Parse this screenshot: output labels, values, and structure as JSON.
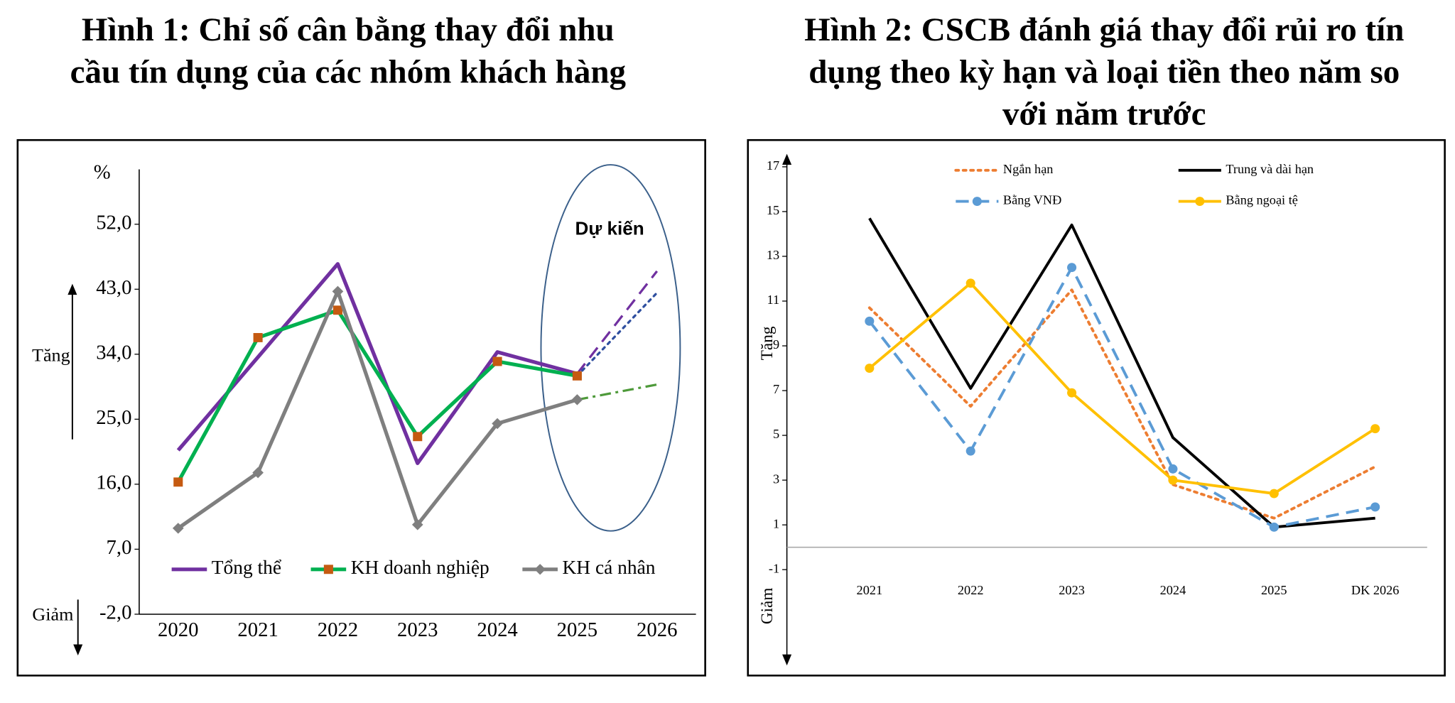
{
  "chart_data": [
    {
      "type": "line",
      "title": [
        "Hình 1:  Chỉ số cân bằng thay đổi nhu",
        "cầu tín dụng của các nhóm khách hàng"
      ],
      "annotations": {
        "unit": "%",
        "up": "Tăng",
        "down": "Giảm",
        "forecast": "Dự kiến"
      },
      "categories": [
        "2020",
        "2021",
        "2022",
        "2023",
        "2024",
        "2025",
        "2026"
      ],
      "projection_start": 5,
      "series": [
        {
          "name": "Tổng thể",
          "color": "#7030a0",
          "marker": "none",
          "dash": "solid",
          "projection_color": "#7030a0",
          "projection_dash": "dashed",
          "values": [
            20.7,
            33.6,
            46.5,
            18.9,
            34.3,
            31.3,
            45.5
          ]
        },
        {
          "name": "KH  doanh nghiệp",
          "color": "#00b050",
          "marker": "square",
          "marker_color": "#c55a11",
          "dash": "solid",
          "projection_color": "#2f4f9f",
          "projection_dash": "dotted",
          "values": [
            16.3,
            36.3,
            40.1,
            22.6,
            33.0,
            31.0,
            42.5
          ]
        },
        {
          "name": "KH cá nhân",
          "color": "#7f7f7f",
          "marker": "diamond",
          "dash": "solid",
          "projection_color": "#4e9a3a",
          "projection_dash": "dashdot",
          "values": [
            9.9,
            17.6,
            42.7,
            10.4,
            24.4,
            27.7,
            29.8
          ]
        }
      ],
      "ylim": [
        -2,
        59.6
      ],
      "yticks": [
        {
          "value": -2,
          "label": "-2,0"
        },
        {
          "value": 7,
          "label": "7,0"
        },
        {
          "value": 16,
          "label": "16,0"
        },
        {
          "value": 25,
          "label": "25,0"
        },
        {
          "value": 34,
          "label": "34,0"
        },
        {
          "value": 43,
          "label": "43,0"
        },
        {
          "value": 52,
          "label": "52,0"
        }
      ],
      "legend": "bottom"
    },
    {
      "type": "line",
      "title": [
        "Hình 2: CSCB đánh giá thay đổi rủi ro tín",
        "dụng theo kỳ hạn và loại tiền theo năm so",
        "với năm trước"
      ],
      "annotations": {
        "up": "Tăng",
        "down": "Giảm"
      },
      "categories": [
        "2021",
        "2022",
        "2023",
        "2024",
        "2025",
        "DK 2026"
      ],
      "series": [
        {
          "name": "Ngắn hạn",
          "color": "#ed7d31",
          "marker": "none",
          "dash": "dotted",
          "values": [
            10.7,
            6.3,
            11.5,
            2.8,
            1.3,
            3.6
          ]
        },
        {
          "name": "Trung và dài hạn",
          "color": "#000000",
          "marker": "none",
          "dash": "solid",
          "values": [
            14.7,
            7.1,
            14.4,
            4.9,
            0.9,
            1.3
          ]
        },
        {
          "name": "Bằng VNĐ",
          "color": "#5b9bd5",
          "marker": "circle",
          "dash": "dashed",
          "values": [
            10.1,
            4.3,
            12.5,
            3.5,
            0.9,
            1.8
          ]
        },
        {
          "name": "Bằng ngoại tệ",
          "color": "#ffc000",
          "marker": "circle",
          "dash": "solid",
          "values": [
            8.0,
            11.8,
            6.9,
            3.0,
            2.4,
            5.3
          ]
        }
      ],
      "ylim": [
        -5.2,
        17.5
      ],
      "yticks": [
        -1,
        1,
        3,
        5,
        7,
        9,
        11,
        13,
        15,
        17
      ],
      "legend": "top"
    }
  ]
}
